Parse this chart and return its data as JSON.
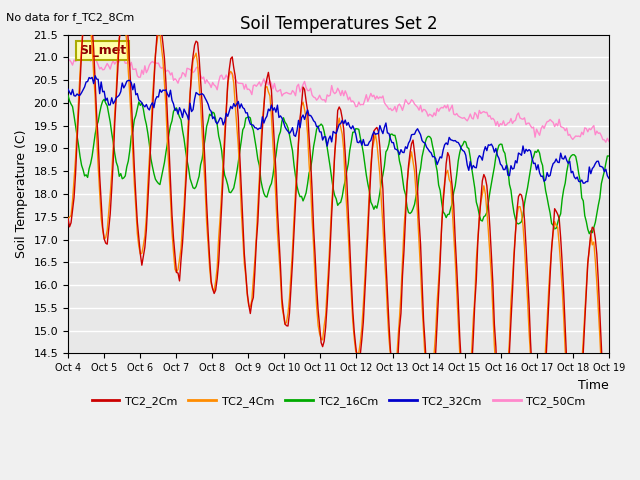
{
  "title": "Soil Temperatures Set 2",
  "top_left_note": "No data for f_TC2_8Cm",
  "si_met_label": "SI_met",
  "ylabel": "Soil Temperature (C)",
  "xlabel": "Time",
  "ylim": [
    14.5,
    21.5
  ],
  "yticks": [
    14.5,
    15.0,
    15.5,
    16.0,
    16.5,
    17.0,
    17.5,
    18.0,
    18.5,
    19.0,
    19.5,
    20.0,
    20.5,
    21.0,
    21.5
  ],
  "xtick_labels": [
    "Oct 4",
    "Oct 5",
    "Oct 6",
    "Oct 7",
    "Oct 8",
    "Oct 9",
    "Oct 10",
    "Oct 11",
    "Oct 12",
    "Oct 13",
    "Oct 14",
    "Oct 15",
    "Oct 16",
    "Oct 17",
    "Oct 18",
    "Oct 19"
  ],
  "colors": {
    "TC2_2Cm": "#cc0000",
    "TC2_4Cm": "#ff8c00",
    "TC2_16Cm": "#00aa00",
    "TC2_32Cm": "#0000cc",
    "TC2_50Cm": "#ff88cc"
  },
  "legend_labels": [
    "TC2_2Cm",
    "TC2_4Cm",
    "TC2_16Cm",
    "TC2_32Cm",
    "TC2_50Cm"
  ],
  "background_color": "#e8e8e8",
  "grid_color": "#ffffff",
  "fig_bg": "#f0f0f0"
}
